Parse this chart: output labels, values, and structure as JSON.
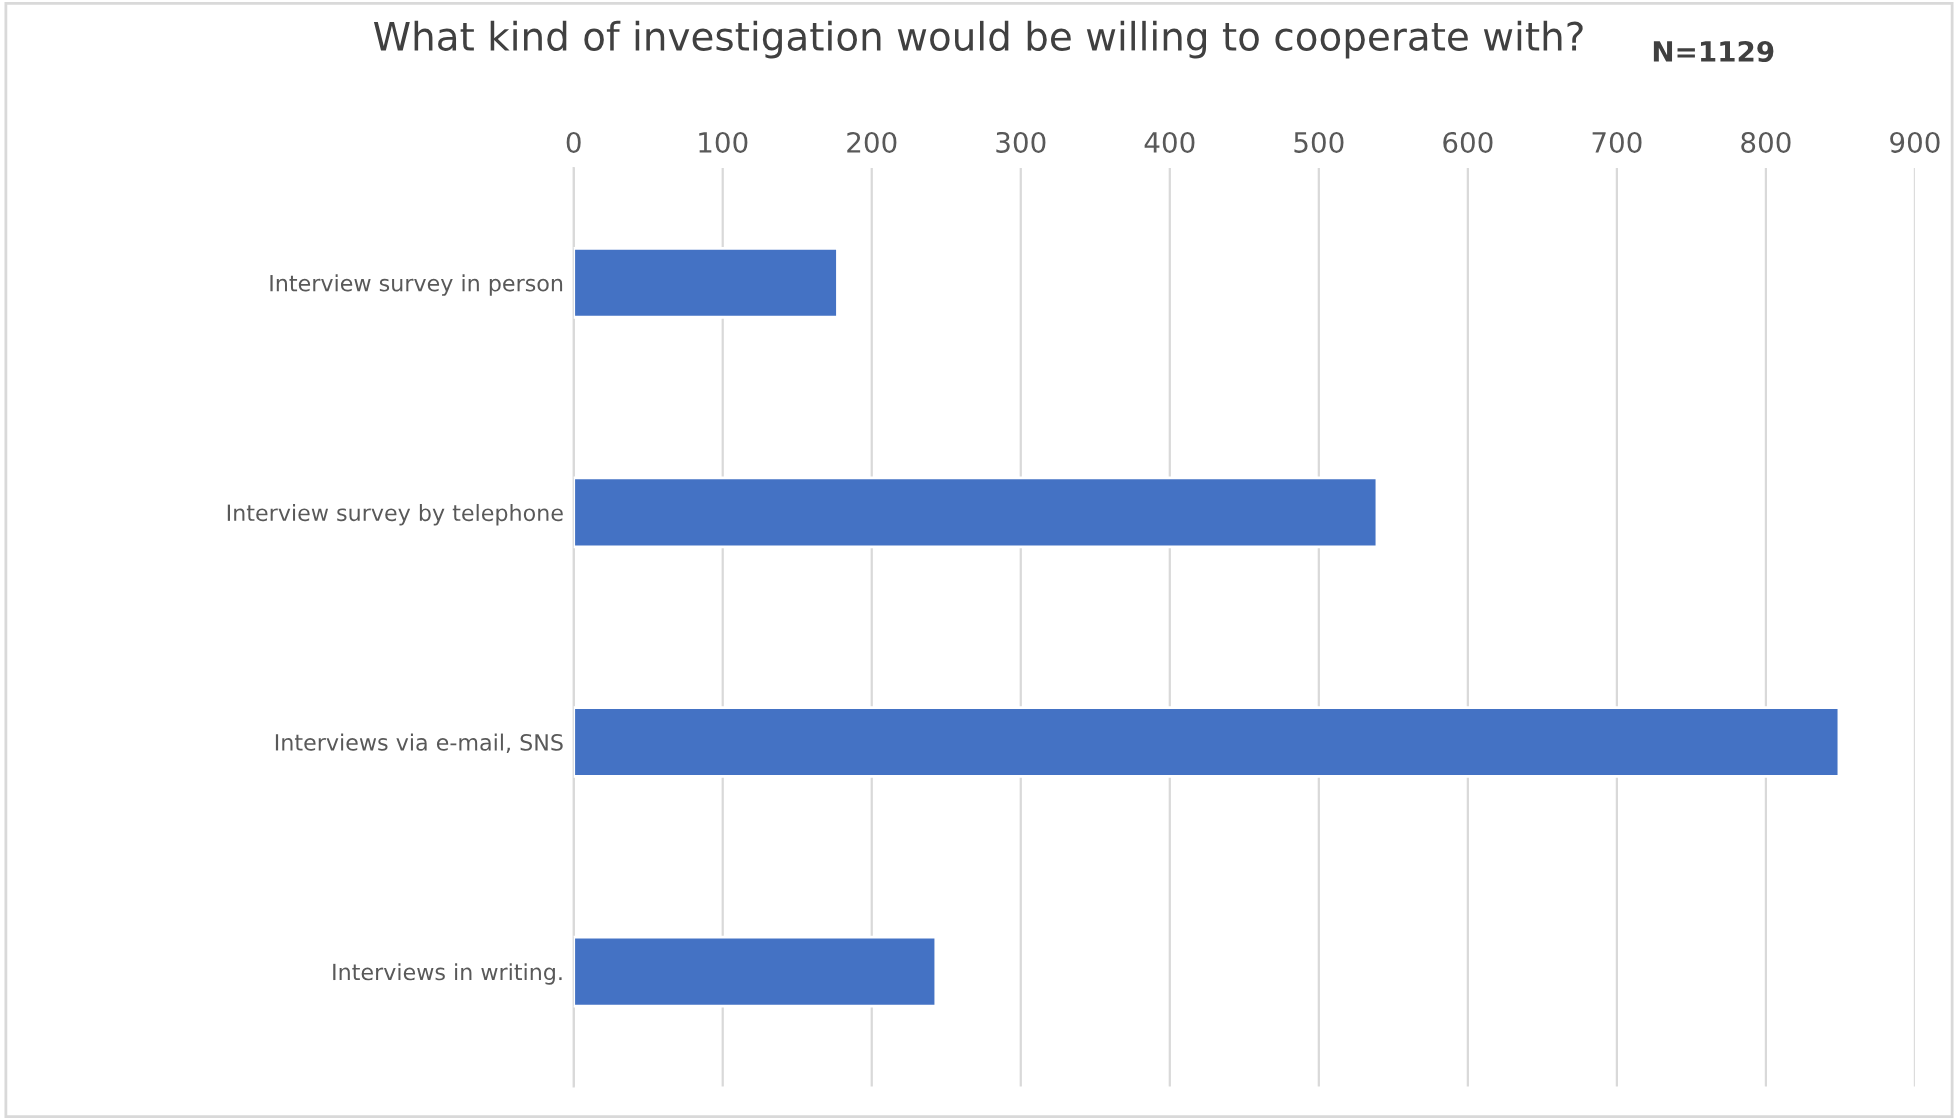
{
  "chart_data": {
    "type": "bar",
    "orientation": "horizontal",
    "title": "What kind of investigation would be willing to cooperate with?",
    "annotations": [
      "N=1129"
    ],
    "categories": [
      "Interview survey in person",
      "Interview survey by telephone",
      "Interviews via e-mail, SNS",
      "Interviews in writing."
    ],
    "values": [
      177,
      539,
      849,
      243
    ],
    "color": "#4472c4",
    "xlim": [
      0,
      900
    ],
    "xticks": [
      0,
      100,
      200,
      300,
      400,
      500,
      600,
      700,
      800,
      900
    ],
    "grid": "x",
    "legend": false
  }
}
